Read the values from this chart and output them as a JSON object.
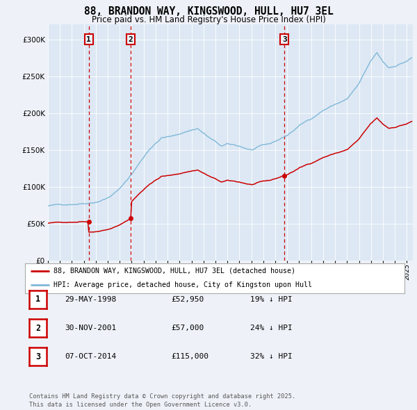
{
  "title": "88, BRANDON WAY, KINGSWOOD, HULL, HU7 3EL",
  "subtitle": "Price paid vs. HM Land Registry's House Price Index (HPI)",
  "hpi_color": "#7fb8d8",
  "sale_color": "#cc0000",
  "vline_color": "#cc0000",
  "background_color": "#eef2f8",
  "plot_bg": "#dde8f4",
  "ylim": [
    0,
    320000
  ],
  "yticks": [
    0,
    50000,
    100000,
    150000,
    200000,
    250000,
    300000
  ],
  "sales": [
    {
      "date_num": 1998.41,
      "price": 52950,
      "label": "1"
    },
    {
      "date_num": 2001.92,
      "price": 57000,
      "label": "2"
    },
    {
      "date_num": 2014.77,
      "price": 115000,
      "label": "3"
    }
  ],
  "legend_entries": [
    {
      "label": "88, BRANDON WAY, KINGSWOOD, HULL, HU7 3EL (detached house)",
      "color": "#cc0000"
    },
    {
      "label": "HPI: Average price, detached house, City of Kingston upon Hull",
      "color": "#7fb8d8"
    }
  ],
  "table_rows": [
    {
      "num": "1",
      "date": "29-MAY-1998",
      "price": "£52,950",
      "hpi": "19% ↓ HPI"
    },
    {
      "num": "2",
      "date": "30-NOV-2001",
      "price": "£57,000",
      "hpi": "24% ↓ HPI"
    },
    {
      "num": "3",
      "date": "07-OCT-2014",
      "price": "£115,000",
      "hpi": "32% ↓ HPI"
    }
  ],
  "footnote": "Contains HM Land Registry data © Crown copyright and database right 2025.\nThis data is licensed under the Open Government Licence v3.0.",
  "xmin": 1995.0,
  "xmax": 2025.5
}
